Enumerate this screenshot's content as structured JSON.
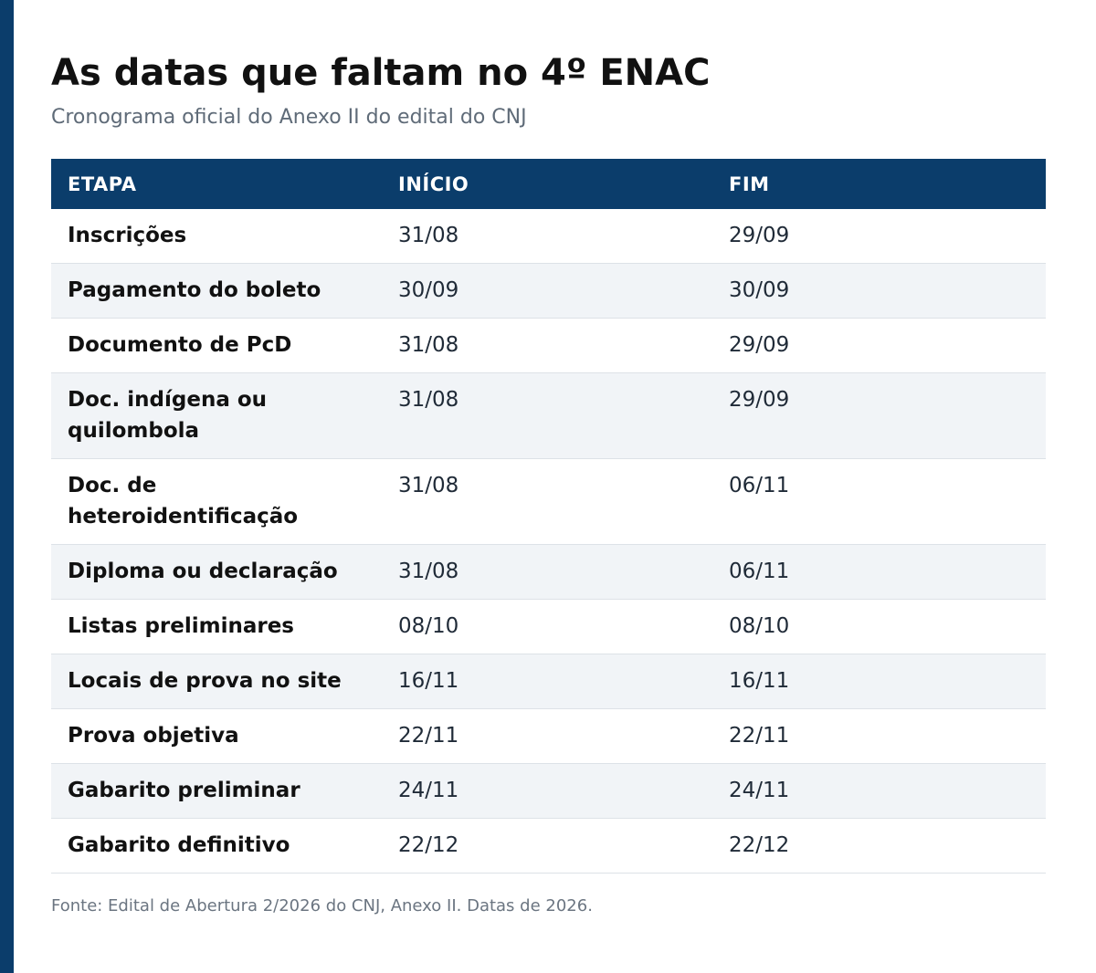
{
  "header": {
    "title": "As datas que faltam no 4º ENAC",
    "subtitle": "Cronograma oficial do Anexo II do edital do CNJ"
  },
  "table": {
    "columns": [
      "ETAPA",
      "INÍCIO",
      "FIM"
    ],
    "rows": [
      {
        "etapa": "Inscrições",
        "inicio": "31/08",
        "fim": "29/09"
      },
      {
        "etapa": "Pagamento do boleto",
        "inicio": "30/09",
        "fim": "30/09"
      },
      {
        "etapa": "Documento de PcD",
        "inicio": "31/08",
        "fim": "29/09"
      },
      {
        "etapa": "Doc. indígena ou quilombola",
        "inicio": "31/08",
        "fim": "29/09"
      },
      {
        "etapa": "Doc. de heteroidentificação",
        "inicio": "31/08",
        "fim": "06/11"
      },
      {
        "etapa": "Diploma ou declaração",
        "inicio": "31/08",
        "fim": "06/11"
      },
      {
        "etapa": "Listas preliminares",
        "inicio": "08/10",
        "fim": "08/10"
      },
      {
        "etapa": "Locais de prova no site",
        "inicio": "16/11",
        "fim": "16/11"
      },
      {
        "etapa": "Prova objetiva",
        "inicio": "22/11",
        "fim": "22/11"
      },
      {
        "etapa": "Gabarito preliminar",
        "inicio": "24/11",
        "fim": "24/11"
      },
      {
        "etapa": "Gabarito definitivo",
        "inicio": "22/12",
        "fim": "22/12"
      }
    ]
  },
  "footer": {
    "source": "Fonte: Edital de Abertura 2/2026 do CNJ, Anexo II. Datas de 2026."
  },
  "colors": {
    "accent": "#0b3d6b",
    "row_alt": "#f1f4f7"
  }
}
